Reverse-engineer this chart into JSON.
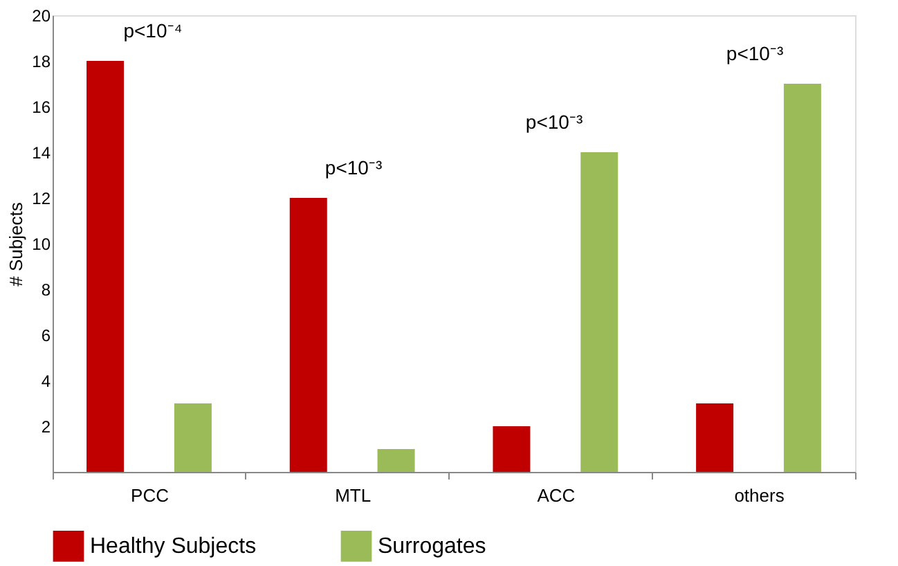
{
  "chart_data": {
    "type": "bar",
    "categories": [
      "PCC",
      "MTL",
      "ACC",
      "others"
    ],
    "series": [
      {
        "name": "Healthy Subjects",
        "color": "#c00000",
        "values": [
          18,
          12,
          2,
          3
        ]
      },
      {
        "name": "Surrogates",
        "color": "#9bbb59",
        "values": [
          3,
          1,
          14,
          17
        ]
      }
    ],
    "ylabel": "# Subjects",
    "ylim": [
      0,
      20
    ],
    "yticks": [
      2,
      4,
      6,
      8,
      10,
      12,
      14,
      16,
      18,
      20
    ],
    "grid": false,
    "legend": "bottom",
    "annotations": [
      "p<10⁻⁴",
      "p<10⁻³",
      "p<10⁻³",
      "p<10⁻³"
    ]
  }
}
